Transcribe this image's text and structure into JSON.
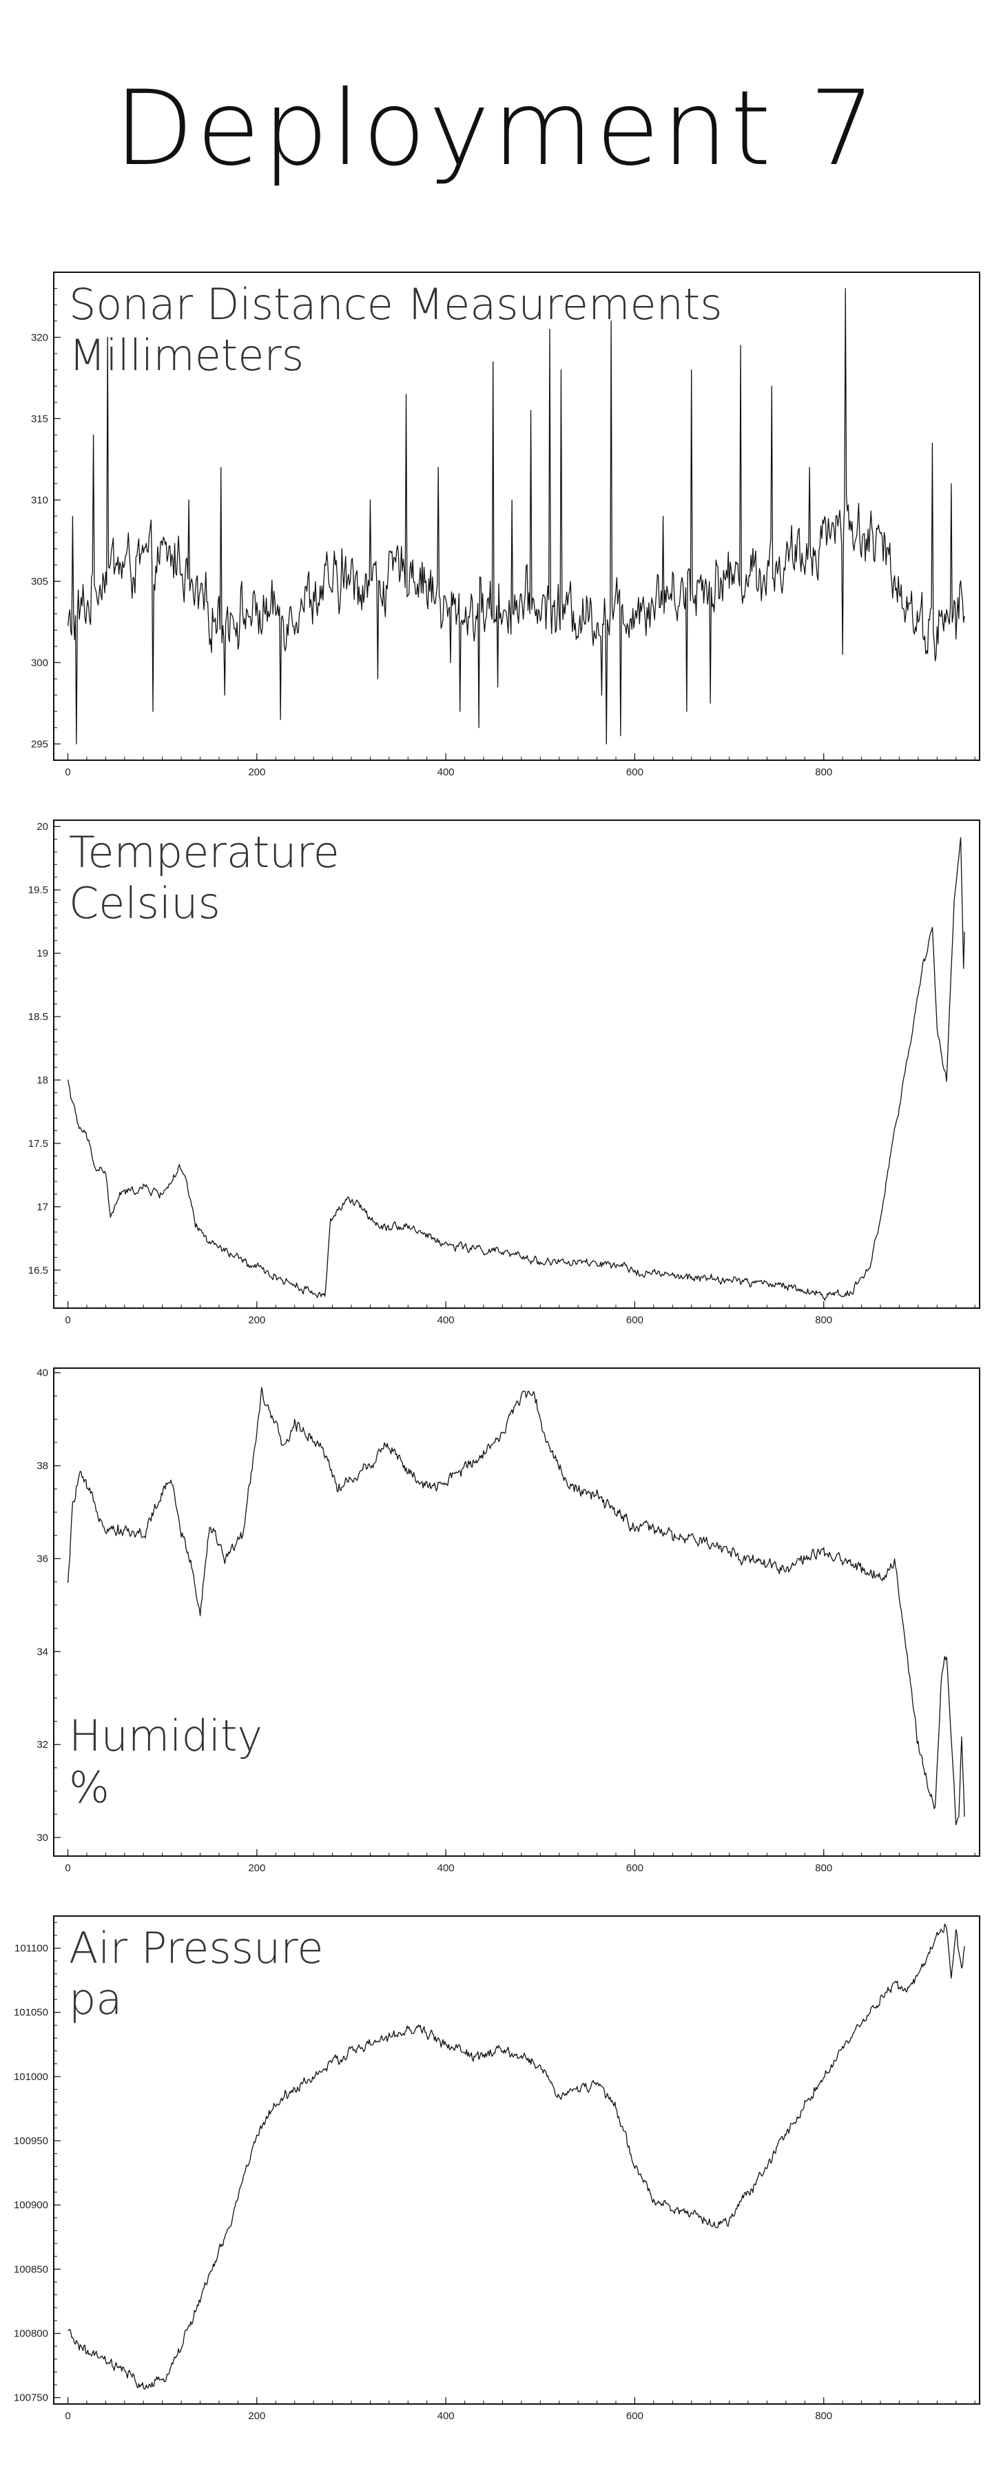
{
  "page": {
    "title": "Deployment 7"
  },
  "chart_data": [
    {
      "type": "line",
      "title": "Sonar Distance Measurements",
      "unit": "Millimeters",
      "label_position": "top-left",
      "xlim": [
        -15,
        965
      ],
      "ylim": [
        294,
        324
      ],
      "x_ticks": [
        0,
        200,
        400,
        600,
        800
      ],
      "y_ticks": [
        295,
        300,
        305,
        310,
        315,
        320
      ],
      "y_tick_labels": [
        "295",
        "300",
        "305",
        "310",
        "315",
        "320"
      ],
      "y_minor_step": 1,
      "baseline": [
        [
          0,
          302
        ],
        [
          20,
          303.5
        ],
        [
          40,
          306
        ],
        [
          80,
          306
        ],
        [
          120,
          306.5
        ],
        [
          130,
          304
        ],
        [
          150,
          303
        ],
        [
          230,
          303
        ],
        [
          250,
          304
        ],
        [
          300,
          305
        ],
        [
          340,
          305
        ],
        [
          360,
          306
        ],
        [
          380,
          305
        ],
        [
          400,
          303
        ],
        [
          460,
          303.5
        ],
        [
          500,
          303.5
        ],
        [
          540,
          303
        ],
        [
          580,
          303
        ],
        [
          620,
          304
        ],
        [
          680,
          305
        ],
        [
          720,
          305.5
        ],
        [
          760,
          306
        ],
        [
          780,
          306.5
        ],
        [
          800,
          308
        ],
        [
          820,
          309
        ],
        [
          860,
          307
        ],
        [
          880,
          305
        ],
        [
          900,
          302.5
        ],
        [
          920,
          302
        ],
        [
          950,
          303.5
        ]
      ],
      "noise": 1.3,
      "spikes": [
        [
          5,
          309
        ],
        [
          9,
          295
        ],
        [
          27,
          314
        ],
        [
          42,
          320
        ],
        [
          90,
          297
        ],
        [
          128,
          310
        ],
        [
          162,
          312
        ],
        [
          166,
          298
        ],
        [
          225,
          296.5
        ],
        [
          290,
          307
        ],
        [
          320,
          310
        ],
        [
          328,
          299
        ],
        [
          358,
          316.5
        ],
        [
          392,
          312
        ],
        [
          405,
          300
        ],
        [
          415,
          297
        ],
        [
          435,
          296
        ],
        [
          450,
          318.5
        ],
        [
          455,
          298.5
        ],
        [
          470,
          310
        ],
        [
          490,
          315.5
        ],
        [
          510,
          320.5
        ],
        [
          522,
          318
        ],
        [
          565,
          298
        ],
        [
          570,
          295
        ],
        [
          575,
          321
        ],
        [
          585,
          295.5
        ],
        [
          630,
          309
        ],
        [
          655,
          297
        ],
        [
          660,
          318
        ],
        [
          680,
          297.5
        ],
        [
          712,
          319.5
        ],
        [
          745,
          317
        ],
        [
          785,
          312
        ],
        [
          820,
          300.5
        ],
        [
          823,
          323
        ],
        [
          915,
          313.5
        ],
        [
          935,
          311
        ]
      ],
      "point_count": 950
    },
    {
      "type": "line",
      "title": "Temperature",
      "unit": "Celsius",
      "label_position": "top-left",
      "xlim": [
        -15,
        965
      ],
      "ylim": [
        16.2,
        20.05
      ],
      "x_ticks": [
        0,
        200,
        400,
        600,
        800
      ],
      "y_ticks": [
        16.5,
        17,
        17.5,
        18,
        18.5,
        19,
        19.5,
        20
      ],
      "y_tick_labels": [
        "16.5",
        "17",
        "17.5",
        "18",
        "18.5",
        "19",
        "19.5",
        "20"
      ],
      "y_minor_step": 0.1,
      "anchors": [
        [
          0,
          18.0
        ],
        [
          10,
          17.65
        ],
        [
          20,
          17.55
        ],
        [
          30,
          17.3
        ],
        [
          40,
          17.28
        ],
        [
          45,
          16.9
        ],
        [
          55,
          17.1
        ],
        [
          80,
          17.15
        ],
        [
          100,
          17.1
        ],
        [
          118,
          17.3
        ],
        [
          125,
          17.2
        ],
        [
          135,
          16.85
        ],
        [
          150,
          16.72
        ],
        [
          190,
          16.55
        ],
        [
          220,
          16.45
        ],
        [
          260,
          16.32
        ],
        [
          272,
          16.3
        ],
        [
          278,
          16.9
        ],
        [
          295,
          17.05
        ],
        [
          310,
          17.0
        ],
        [
          330,
          16.85
        ],
        [
          360,
          16.85
        ],
        [
          400,
          16.7
        ],
        [
          450,
          16.65
        ],
        [
          500,
          16.57
        ],
        [
          560,
          16.55
        ],
        [
          600,
          16.5
        ],
        [
          640,
          16.45
        ],
        [
          700,
          16.42
        ],
        [
          760,
          16.38
        ],
        [
          800,
          16.3
        ],
        [
          830,
          16.33
        ],
        [
          850,
          16.55
        ],
        [
          862,
          17.0
        ],
        [
          875,
          17.6
        ],
        [
          890,
          18.2
        ],
        [
          905,
          18.9
        ],
        [
          915,
          19.2
        ],
        [
          920,
          18.4
        ],
        [
          930,
          18.0
        ],
        [
          938,
          19.4
        ],
        [
          945,
          19.9
        ],
        [
          948,
          18.9
        ],
        [
          952,
          20.0
        ]
      ],
      "noise": 0.025,
      "point_count": 950
    },
    {
      "type": "line",
      "title": "Humidity",
      "unit": "%",
      "label_position": "bottom-left",
      "xlim": [
        -15,
        965
      ],
      "ylim": [
        29.6,
        40.1
      ],
      "x_ticks": [
        0,
        200,
        400,
        600,
        800
      ],
      "y_ticks": [
        30,
        32,
        34,
        36,
        38,
        40
      ],
      "y_tick_labels": [
        "30",
        "32",
        "34",
        "36",
        "38",
        "40"
      ],
      "y_minor_step": 0.5,
      "anchors": [
        [
          0,
          35.4
        ],
        [
          5,
          37.1
        ],
        [
          12,
          37.8
        ],
        [
          25,
          37.3
        ],
        [
          40,
          36.7
        ],
        [
          60,
          36.6
        ],
        [
          80,
          36.5
        ],
        [
          95,
          37.2
        ],
        [
          110,
          37.7
        ],
        [
          120,
          36.5
        ],
        [
          130,
          36.0
        ],
        [
          140,
          34.8
        ],
        [
          150,
          36.8
        ],
        [
          165,
          36.0
        ],
        [
          185,
          36.5
        ],
        [
          195,
          38.0
        ],
        [
          205,
          39.6
        ],
        [
          215,
          39.0
        ],
        [
          230,
          38.4
        ],
        [
          240,
          38.9
        ],
        [
          260,
          38.6
        ],
        [
          275,
          38.2
        ],
        [
          285,
          37.5
        ],
        [
          320,
          38.0
        ],
        [
          335,
          38.5
        ],
        [
          350,
          38.2
        ],
        [
          370,
          37.6
        ],
        [
          390,
          37.5
        ],
        [
          410,
          37.8
        ],
        [
          440,
          38.3
        ],
        [
          460,
          38.7
        ],
        [
          480,
          39.5
        ],
        [
          490,
          39.7
        ],
        [
          500,
          39.0
        ],
        [
          510,
          38.4
        ],
        [
          530,
          37.6
        ],
        [
          560,
          37.3
        ],
        [
          580,
          37.0
        ],
        [
          600,
          36.7
        ],
        [
          640,
          36.5
        ],
        [
          680,
          36.3
        ],
        [
          720,
          36.0
        ],
        [
          760,
          35.8
        ],
        [
          790,
          36.1
        ],
        [
          830,
          35.9
        ],
        [
          860,
          35.6
        ],
        [
          875,
          35.9
        ],
        [
          882,
          35.0
        ],
        [
          890,
          33.5
        ],
        [
          900,
          32.0
        ],
        [
          910,
          31.2
        ],
        [
          918,
          30.6
        ],
        [
          925,
          33.5
        ],
        [
          930,
          34.0
        ],
        [
          935,
          32.0
        ],
        [
          940,
          30.3
        ],
        [
          943,
          30.4
        ],
        [
          946,
          32.2
        ],
        [
          950,
          29.8
        ]
      ],
      "noise": 0.1,
      "point_count": 950
    },
    {
      "type": "line",
      "title": "Air Pressure",
      "unit": "pa",
      "label_position": "top-left",
      "xlim": [
        -15,
        965
      ],
      "ylim": [
        100745,
        101125
      ],
      "x_ticks": [
        0,
        200,
        400,
        600,
        800
      ],
      "y_ticks": [
        100750,
        100800,
        100850,
        100900,
        100950,
        101000,
        101050,
        101100
      ],
      "y_tick_labels": [
        "100750",
        "100800",
        "100850",
        "100900",
        "100950",
        "101000",
        "101050",
        "101100"
      ],
      "y_minor_step": 10,
      "anchors": [
        [
          0,
          100800
        ],
        [
          20,
          100785
        ],
        [
          40,
          100778
        ],
        [
          60,
          100770
        ],
        [
          80,
          100758
        ],
        [
          100,
          100762
        ],
        [
          120,
          100790
        ],
        [
          150,
          100845
        ],
        [
          170,
          100880
        ],
        [
          190,
          100932
        ],
        [
          210,
          100970
        ],
        [
          230,
          100985
        ],
        [
          260,
          101000
        ],
        [
          300,
          101020
        ],
        [
          340,
          101030
        ],
        [
          370,
          101038
        ],
        [
          400,
          101025
        ],
        [
          430,
          101015
        ],
        [
          460,
          101020
        ],
        [
          480,
          101015
        ],
        [
          500,
          101008
        ],
        [
          520,
          100985
        ],
        [
          540,
          100990
        ],
        [
          560,
          100995
        ],
        [
          580,
          100975
        ],
        [
          600,
          100930
        ],
        [
          620,
          100905
        ],
        [
          650,
          100895
        ],
        [
          680,
          100885
        ],
        [
          700,
          100888
        ],
        [
          720,
          100910
        ],
        [
          740,
          100930
        ],
        [
          760,
          100955
        ],
        [
          790,
          100990
        ],
        [
          810,
          101010
        ],
        [
          830,
          101030
        ],
        [
          850,
          101050
        ],
        [
          870,
          101070
        ],
        [
          890,
          101070
        ],
        [
          910,
          101090
        ],
        [
          920,
          101110
        ],
        [
          930,
          101120
        ],
        [
          935,
          101075
        ],
        [
          940,
          101115
        ],
        [
          946,
          101080
        ],
        [
          950,
          101110
        ]
      ],
      "noise": 3,
      "point_count": 950
    }
  ]
}
